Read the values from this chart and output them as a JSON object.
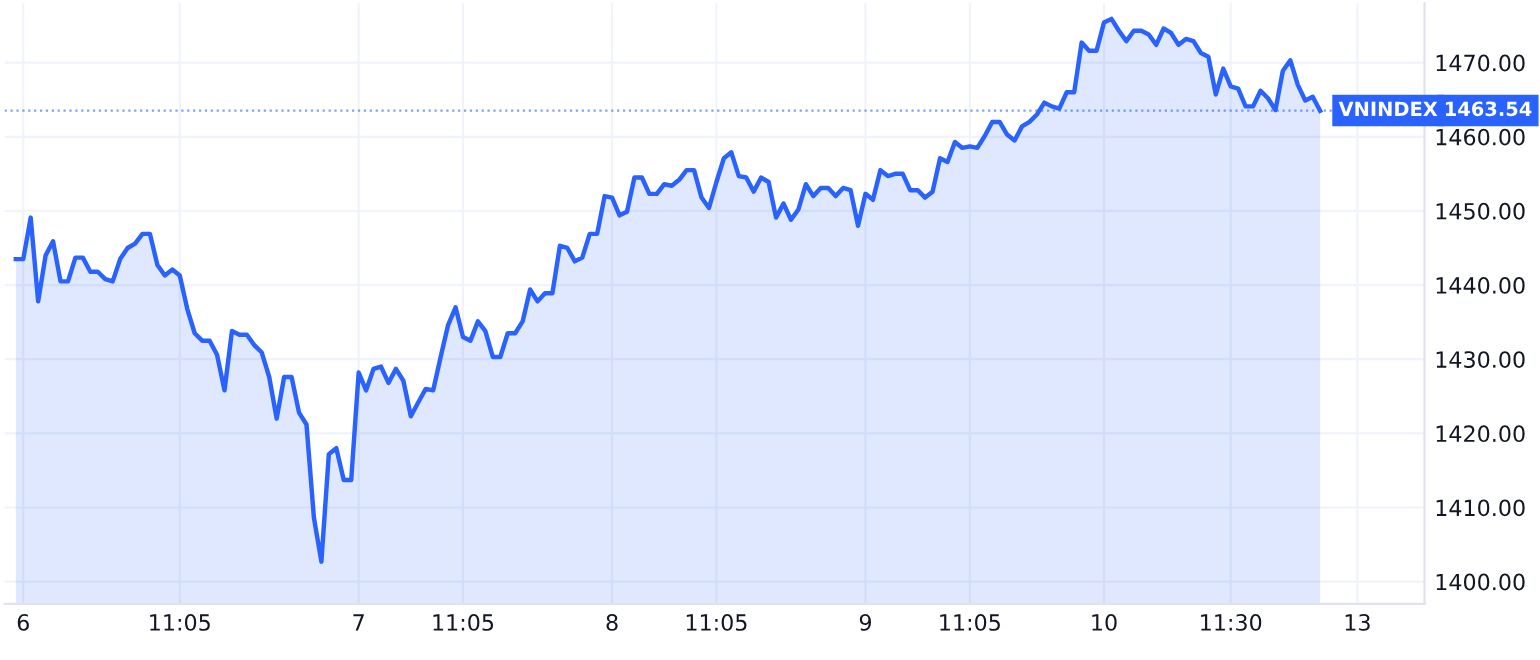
{
  "chart_data": {
    "type": "area",
    "categories": [
      null,
      "6",
      null,
      null,
      null,
      null,
      null,
      null,
      null,
      null,
      null,
      null,
      null,
      null,
      null,
      null,
      null,
      null,
      null,
      null,
      null,
      null,
      "11:05",
      null,
      null,
      null,
      null,
      null,
      null,
      null,
      null,
      null,
      null,
      null,
      null,
      null,
      null,
      null,
      null,
      null,
      null,
      null,
      null,
      null,
      null,
      null,
      "7",
      null,
      null,
      null,
      null,
      null,
      null,
      null,
      null,
      null,
      null,
      null,
      null,
      null,
      "11:05",
      null,
      null,
      null,
      null,
      null,
      null,
      null,
      null,
      null,
      null,
      null,
      null,
      null,
      null,
      null,
      null,
      null,
      null,
      null,
      "8",
      null,
      null,
      null,
      null,
      null,
      null,
      null,
      null,
      null,
      null,
      null,
      null,
      null,
      "11:05",
      null,
      null,
      null,
      null,
      null,
      null,
      null,
      null,
      null,
      null,
      null,
      null,
      null,
      null,
      null,
      null,
      null,
      null,
      null,
      "9",
      null,
      null,
      null,
      null,
      null,
      null,
      null,
      null,
      null,
      null,
      null,
      null,
      null,
      "11:05",
      null,
      null,
      null,
      null,
      null,
      null,
      null,
      null,
      null,
      null,
      null,
      null,
      null,
      null,
      null,
      null,
      null,
      "10",
      null,
      null,
      null,
      null,
      null,
      null,
      null,
      null,
      null,
      null,
      null,
      null,
      null,
      null,
      null,
      null,
      "11:30",
      null,
      null,
      null,
      null,
      null,
      null,
      null,
      null,
      null,
      null,
      null,
      null,
      null,
      null,
      null,
      null,
      "13"
    ],
    "series": [
      {
        "name": "VNINDEX",
        "color": "#2962ff",
        "values": [
          1443.5,
          1443.5,
          1449.1,
          1437.8,
          1444.0,
          1445.9,
          1440.5,
          1440.5,
          1443.7,
          1443.7,
          1441.8,
          1441.8,
          1440.8,
          1440.5,
          1443.5,
          1445.0,
          1445.6,
          1446.9,
          1446.9,
          1442.7,
          1441.3,
          1442.1,
          1441.3,
          1436.8,
          1433.5,
          1432.5,
          1432.5,
          1430.6,
          1425.8,
          1433.8,
          1433.3,
          1433.3,
          1431.9,
          1430.9,
          1427.6,
          1422.0,
          1427.6,
          1427.6,
          1422.8,
          1421.2,
          1408.6,
          1402.7,
          1417.2,
          1418.0,
          1413.7,
          1413.7,
          1428.2,
          1425.8,
          1428.7,
          1429.0,
          1426.8,
          1428.7,
          1427.1,
          1422.3,
          1424.2,
          1426.0,
          1425.8,
          1430.3,
          1434.6,
          1437.0,
          1433.0,
          1432.5,
          1435.1,
          1433.8,
          1430.3,
          1430.3,
          1433.5,
          1433.5,
          1435.1,
          1439.4,
          1437.8,
          1438.9,
          1438.9,
          1445.3,
          1445.0,
          1443.2,
          1443.7,
          1446.9,
          1446.9,
          1452.0,
          1451.8,
          1449.4,
          1449.9,
          1454.5,
          1454.5,
          1452.3,
          1452.3,
          1453.6,
          1453.4,
          1454.2,
          1455.5,
          1455.5,
          1451.8,
          1450.4,
          1453.9,
          1457.1,
          1457.9,
          1454.7,
          1454.5,
          1452.6,
          1454.5,
          1453.9,
          1449.1,
          1451.0,
          1448.8,
          1450.2,
          1453.6,
          1452.0,
          1453.1,
          1453.1,
          1452.0,
          1453.1,
          1452.8,
          1448.0,
          1452.3,
          1451.5,
          1455.5,
          1454.7,
          1455.0,
          1455.0,
          1452.8,
          1452.8,
          1451.8,
          1452.6,
          1457.1,
          1456.6,
          1459.3,
          1458.5,
          1458.7,
          1458.5,
          1460.1,
          1462.0,
          1462.0,
          1460.3,
          1459.5,
          1461.4,
          1462.0,
          1463.0,
          1464.6,
          1464.1,
          1463.8,
          1466.0,
          1466.0,
          1472.7,
          1471.6,
          1471.6,
          1475.4,
          1475.9,
          1474.3,
          1472.9,
          1474.3,
          1474.3,
          1473.8,
          1472.4,
          1474.6,
          1474.0,
          1472.4,
          1473.2,
          1472.9,
          1471.3,
          1470.8,
          1465.7,
          1469.2,
          1466.8,
          1466.5,
          1464.1,
          1464.1,
          1466.2,
          1465.2,
          1463.6,
          1468.9,
          1470.3,
          1467.0,
          1464.9,
          1465.4,
          1463.5,
          null,
          null,
          null,
          null,
          null
        ]
      }
    ],
    "ylim": [
      1397,
      1478
    ],
    "yticks": [
      {
        "value": 1400,
        "label": "1400.00"
      },
      {
        "value": 1410,
        "label": "1410.00"
      },
      {
        "value": 1420,
        "label": "1420.00"
      },
      {
        "value": 1430,
        "label": "1430.00"
      },
      {
        "value": 1440,
        "label": "1440.00"
      },
      {
        "value": 1450,
        "label": "1450.00"
      },
      {
        "value": 1460,
        "label": "1460.00"
      },
      {
        "value": 1470,
        "label": "1470.00"
      }
    ],
    "ref_lines": [
      {
        "axis": "y",
        "value": 1463.54,
        "label": "1463.54",
        "color": "#2962ff",
        "line_style": "dotted"
      }
    ],
    "grid": true,
    "legend": false
  }
}
